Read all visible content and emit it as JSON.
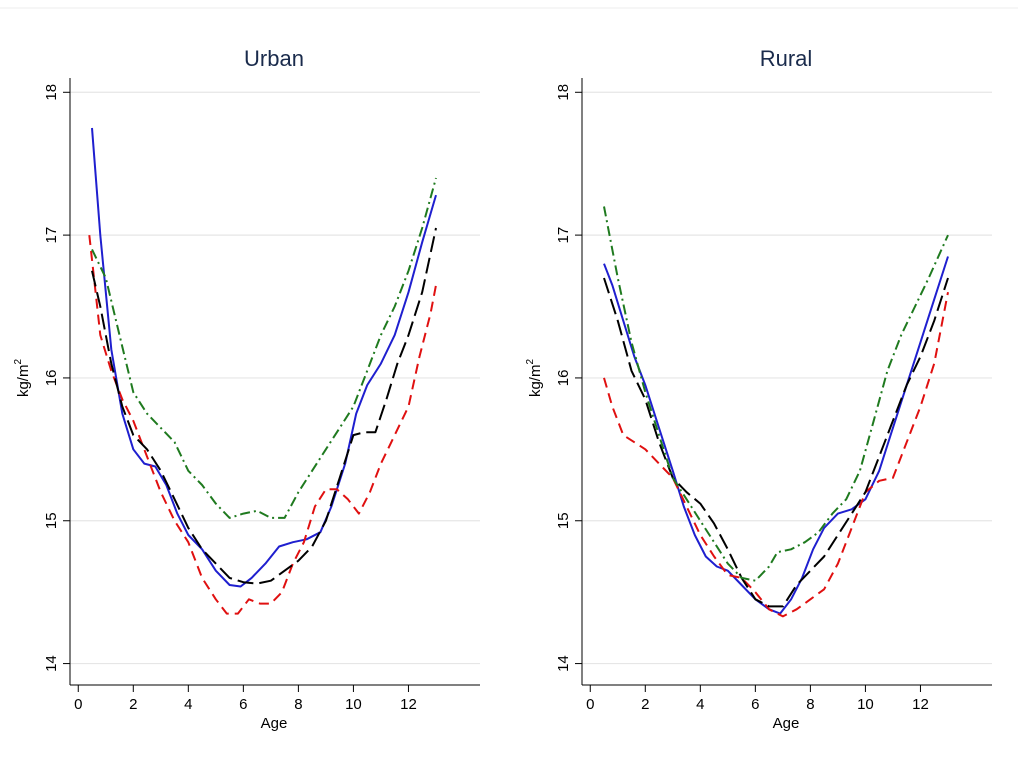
{
  "chart_data": [
    {
      "type": "line",
      "title": "Urban",
      "xlabel": "Age",
      "ylabel_base": "kg/m",
      "ylabel_sup": "2",
      "xlim": [
        -0.3,
        14.6
      ],
      "ylim": [
        13.85,
        18.1
      ],
      "xticks": [
        0,
        2,
        4,
        6,
        8,
        10,
        12
      ],
      "yticks": [
        14,
        15,
        16,
        17,
        18
      ],
      "grid": true,
      "legend": "none",
      "series": [
        {
          "color": "#1f1fcf",
          "dash": "solid",
          "points": [
            [
              0.5,
              17.75
            ],
            [
              0.8,
              17.0
            ],
            [
              1.2,
              16.2
            ],
            [
              1.6,
              15.75
            ],
            [
              2.0,
              15.5
            ],
            [
              2.4,
              15.4
            ],
            [
              2.8,
              15.38
            ],
            [
              3.2,
              15.25
            ],
            [
              3.6,
              15.05
            ],
            [
              4.0,
              14.9
            ],
            [
              4.5,
              14.8
            ],
            [
              5.0,
              14.65
            ],
            [
              5.5,
              14.55
            ],
            [
              5.9,
              14.54
            ],
            [
              6.3,
              14.6
            ],
            [
              6.8,
              14.7
            ],
            [
              7.3,
              14.82
            ],
            [
              7.8,
              14.85
            ],
            [
              8.3,
              14.87
            ],
            [
              8.8,
              14.92
            ],
            [
              9.2,
              15.1
            ],
            [
              9.7,
              15.4
            ],
            [
              10.1,
              15.75
            ],
            [
              10.5,
              15.95
            ],
            [
              11.0,
              16.1
            ],
            [
              11.5,
              16.3
            ],
            [
              12.0,
              16.6
            ],
            [
              12.5,
              16.95
            ],
            [
              13.0,
              17.28
            ]
          ]
        },
        {
          "color": "#e01010",
          "dash": "10,6",
          "points": [
            [
              0.4,
              17.0
            ],
            [
              0.8,
              16.3
            ],
            [
              1.2,
              16.05
            ],
            [
              1.6,
              15.85
            ],
            [
              2.0,
              15.7
            ],
            [
              2.5,
              15.45
            ],
            [
              3.0,
              15.2
            ],
            [
              3.5,
              15.0
            ],
            [
              4.0,
              14.85
            ],
            [
              4.5,
              14.6
            ],
            [
              5.0,
              14.45
            ],
            [
              5.4,
              14.35
            ],
            [
              5.8,
              14.35
            ],
            [
              6.2,
              14.45
            ],
            [
              6.6,
              14.42
            ],
            [
              7.0,
              14.42
            ],
            [
              7.4,
              14.5
            ],
            [
              7.8,
              14.7
            ],
            [
              8.2,
              14.85
            ],
            [
              8.6,
              15.1
            ],
            [
              9.0,
              15.22
            ],
            [
              9.4,
              15.22
            ],
            [
              9.8,
              15.15
            ],
            [
              10.2,
              15.05
            ],
            [
              10.6,
              15.2
            ],
            [
              11.0,
              15.4
            ],
            [
              11.5,
              15.6
            ],
            [
              12.0,
              15.8
            ],
            [
              12.4,
              16.15
            ],
            [
              12.8,
              16.45
            ],
            [
              13.0,
              16.65
            ]
          ]
        },
        {
          "color": "#000000",
          "dash": "16,6",
          "points": [
            [
              0.5,
              16.75
            ],
            [
              0.8,
              16.5
            ],
            [
              1.2,
              16.1
            ],
            [
              1.6,
              15.8
            ],
            [
              2.0,
              15.6
            ],
            [
              2.5,
              15.5
            ],
            [
              3.0,
              15.35
            ],
            [
              3.5,
              15.15
            ],
            [
              4.0,
              14.95
            ],
            [
              4.5,
              14.8
            ],
            [
              5.0,
              14.7
            ],
            [
              5.5,
              14.6
            ],
            [
              6.0,
              14.57
            ],
            [
              6.5,
              14.56
            ],
            [
              7.0,
              14.58
            ],
            [
              7.5,
              14.65
            ],
            [
              8.0,
              14.72
            ],
            [
              8.5,
              14.82
            ],
            [
              9.0,
              15.0
            ],
            [
              9.5,
              15.3
            ],
            [
              10.0,
              15.6
            ],
            [
              10.4,
              15.62
            ],
            [
              10.8,
              15.62
            ],
            [
              11.2,
              15.85
            ],
            [
              11.6,
              16.1
            ],
            [
              12.0,
              16.3
            ],
            [
              12.5,
              16.6
            ],
            [
              13.0,
              17.05
            ]
          ]
        },
        {
          "color": "#1f7a1f",
          "dash": "10,4,2,4",
          "points": [
            [
              0.5,
              16.9
            ],
            [
              1.0,
              16.7
            ],
            [
              1.5,
              16.3
            ],
            [
              2.0,
              15.9
            ],
            [
              2.5,
              15.75
            ],
            [
              3.0,
              15.65
            ],
            [
              3.5,
              15.55
            ],
            [
              4.0,
              15.35
            ],
            [
              4.5,
              15.25
            ],
            [
              5.0,
              15.12
            ],
            [
              5.5,
              15.02
            ],
            [
              6.0,
              15.05
            ],
            [
              6.5,
              15.07
            ],
            [
              7.0,
              15.02
            ],
            [
              7.5,
              15.02
            ],
            [
              8.0,
              15.2
            ],
            [
              8.5,
              15.35
            ],
            [
              9.0,
              15.5
            ],
            [
              9.5,
              15.65
            ],
            [
              10.0,
              15.8
            ],
            [
              10.5,
              16.05
            ],
            [
              11.0,
              16.3
            ],
            [
              11.5,
              16.5
            ],
            [
              12.0,
              16.75
            ],
            [
              12.5,
              17.05
            ],
            [
              13.0,
              17.4
            ]
          ]
        }
      ]
    },
    {
      "type": "line",
      "title": "Rural",
      "xlabel": "Age",
      "ylabel_base": "kg/m",
      "ylabel_sup": "2",
      "xlim": [
        -0.3,
        14.6
      ],
      "ylim": [
        13.85,
        18.1
      ],
      "xticks": [
        0,
        2,
        4,
        6,
        8,
        10,
        12
      ],
      "yticks": [
        14,
        15,
        16,
        17,
        18
      ],
      "grid": true,
      "legend": "none",
      "series": [
        {
          "color": "#1f1fcf",
          "dash": "solid",
          "points": [
            [
              0.5,
              16.8
            ],
            [
              0.8,
              16.65
            ],
            [
              1.2,
              16.4
            ],
            [
              1.6,
              16.15
            ],
            [
              2.0,
              15.95
            ],
            [
              2.5,
              15.65
            ],
            [
              3.0,
              15.35
            ],
            [
              3.4,
              15.1
            ],
            [
              3.8,
              14.9
            ],
            [
              4.2,
              14.75
            ],
            [
              4.6,
              14.68
            ],
            [
              5.0,
              14.65
            ],
            [
              5.5,
              14.55
            ],
            [
              6.0,
              14.45
            ],
            [
              6.5,
              14.38
            ],
            [
              6.9,
              14.35
            ],
            [
              7.3,
              14.45
            ],
            [
              7.7,
              14.6
            ],
            [
              8.1,
              14.8
            ],
            [
              8.5,
              14.95
            ],
            [
              9.0,
              15.05
            ],
            [
              9.5,
              15.08
            ],
            [
              10.0,
              15.15
            ],
            [
              10.5,
              15.35
            ],
            [
              11.0,
              15.65
            ],
            [
              11.5,
              15.95
            ],
            [
              12.0,
              16.25
            ],
            [
              12.5,
              16.55
            ],
            [
              13.0,
              16.85
            ]
          ]
        },
        {
          "color": "#e01010",
          "dash": "10,6",
          "points": [
            [
              0.5,
              16.0
            ],
            [
              0.8,
              15.8
            ],
            [
              1.2,
              15.6
            ],
            [
              1.6,
              15.55
            ],
            [
              2.0,
              15.5
            ],
            [
              2.5,
              15.4
            ],
            [
              3.0,
              15.3
            ],
            [
              3.5,
              15.1
            ],
            [
              4.0,
              14.9
            ],
            [
              4.5,
              14.75
            ],
            [
              5.0,
              14.62
            ],
            [
              5.5,
              14.6
            ],
            [
              6.0,
              14.5
            ],
            [
              6.5,
              14.38
            ],
            [
              7.0,
              14.33
            ],
            [
              7.5,
              14.38
            ],
            [
              8.0,
              14.45
            ],
            [
              8.5,
              14.52
            ],
            [
              9.0,
              14.7
            ],
            [
              9.5,
              14.95
            ],
            [
              10.0,
              15.2
            ],
            [
              10.5,
              15.28
            ],
            [
              11.0,
              15.3
            ],
            [
              11.5,
              15.55
            ],
            [
              12.0,
              15.8
            ],
            [
              12.5,
              16.1
            ],
            [
              13.0,
              16.6
            ]
          ]
        },
        {
          "color": "#000000",
          "dash": "16,6",
          "points": [
            [
              0.5,
              16.7
            ],
            [
              1.0,
              16.4
            ],
            [
              1.5,
              16.05
            ],
            [
              2.0,
              15.85
            ],
            [
              2.5,
              15.55
            ],
            [
              3.0,
              15.3
            ],
            [
              3.5,
              15.2
            ],
            [
              4.0,
              15.12
            ],
            [
              4.5,
              14.98
            ],
            [
              5.0,
              14.8
            ],
            [
              5.5,
              14.6
            ],
            [
              6.0,
              14.45
            ],
            [
              6.5,
              14.4
            ],
            [
              7.0,
              14.4
            ],
            [
              7.5,
              14.55
            ],
            [
              8.0,
              14.65
            ],
            [
              8.5,
              14.75
            ],
            [
              9.0,
              14.9
            ],
            [
              9.5,
              15.05
            ],
            [
              10.0,
              15.2
            ],
            [
              10.5,
              15.45
            ],
            [
              11.0,
              15.7
            ],
            [
              11.5,
              15.95
            ],
            [
              12.0,
              16.15
            ],
            [
              12.5,
              16.4
            ],
            [
              13.0,
              16.7
            ]
          ]
        },
        {
          "color": "#1f7a1f",
          "dash": "10,4,2,4",
          "points": [
            [
              0.5,
              17.2
            ],
            [
              1.0,
              16.7
            ],
            [
              1.5,
              16.25
            ],
            [
              2.0,
              15.9
            ],
            [
              2.5,
              15.6
            ],
            [
              3.0,
              15.3
            ],
            [
              3.5,
              15.15
            ],
            [
              4.0,
              15.0
            ],
            [
              4.5,
              14.85
            ],
            [
              5.0,
              14.7
            ],
            [
              5.5,
              14.6
            ],
            [
              6.0,
              14.58
            ],
            [
              6.5,
              14.68
            ],
            [
              6.8,
              14.78
            ],
            [
              7.3,
              14.8
            ],
            [
              7.8,
              14.85
            ],
            [
              8.3,
              14.92
            ],
            [
              8.8,
              15.05
            ],
            [
              9.3,
              15.15
            ],
            [
              9.8,
              15.35
            ],
            [
              10.3,
              15.7
            ],
            [
              10.8,
              16.05
            ],
            [
              11.3,
              16.3
            ],
            [
              11.8,
              16.5
            ],
            [
              12.3,
              16.7
            ],
            [
              13.0,
              17.0
            ]
          ]
        }
      ]
    }
  ]
}
